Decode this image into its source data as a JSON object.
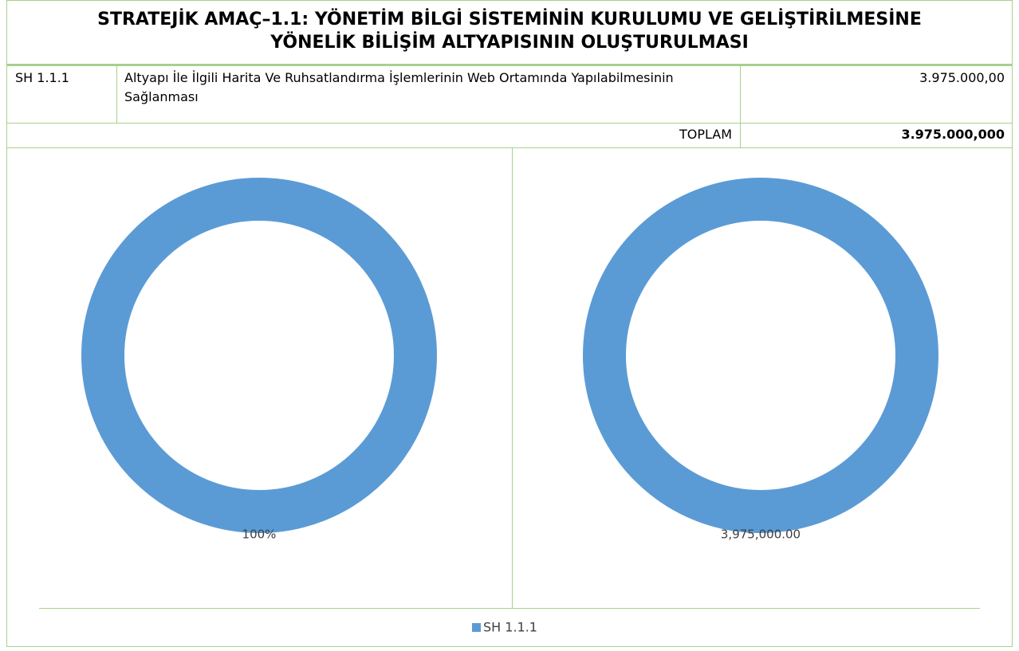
{
  "header": {
    "title_lines": [
      "STRATEJİK AMAÇ–1.1: YÖNETİM BİLGİ SİSTEMİNİN KURULUMU VE GELİŞTİRİLMESİNE",
      "YÖNELİK BİLİŞİM ALTYAPISININ OLUŞTURULMASI"
    ]
  },
  "table": {
    "rows": [
      [
        "SH 1.1.1",
        "Altyapı İle İlgili Harita Ve Ruhsatlandırma İşlemlerinin Web Ortamında Yapılabilmesinin Sağlanması",
        "3.975.000,00"
      ]
    ],
    "total_label": "TOPLAM",
    "total": "3.975.000,000"
  },
  "chart_data": [
    {
      "type": "donut",
      "categories": [
        "SH 1.1.1"
      ],
      "values": [
        100
      ],
      "value_labels": [
        "100%"
      ],
      "color": "#5b9bd5"
    },
    {
      "type": "donut",
      "categories": [
        "SH 1.1.1"
      ],
      "values": [
        3975000
      ],
      "value_labels": [
        "3,975,000.00"
      ],
      "color": "#5b9bd5"
    }
  ]
}
